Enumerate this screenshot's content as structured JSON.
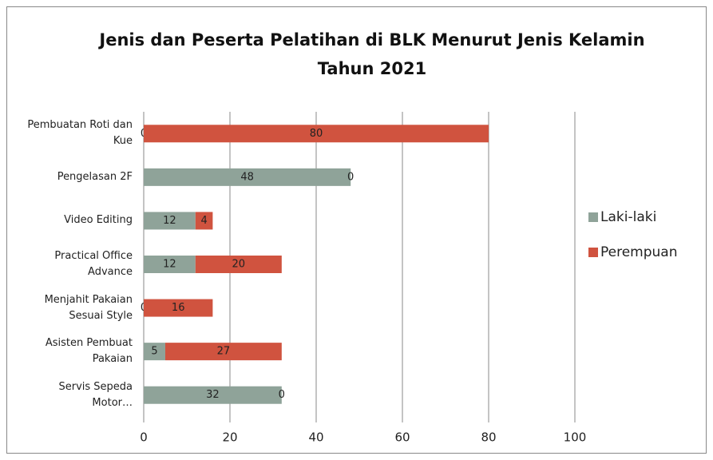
{
  "chart_data": {
    "type": "stacked_bar_horizontal",
    "title": "Jenis dan Peserta Pelatihan di BLK Menurut Jenis Kelamin Tahun 2021",
    "categories": [
      "Pembuatan Roti dan Kue",
      "Pengelasan 2F",
      "Video Editing",
      "Practical Office Advance",
      "Menjahit Pakaian Sesuai Style",
      "Asisten Pembuat Pakaian",
      "Servis Sepeda Motor…"
    ],
    "series": [
      {
        "name": "Laki-laki",
        "color": "#8fa399",
        "values": [
          0,
          48,
          12,
          12,
          0,
          5,
          32
        ]
      },
      {
        "name": "Perempuan",
        "color": "#d0533f",
        "values": [
          80,
          0,
          4,
          20,
          16,
          27,
          0
        ]
      }
    ],
    "xlim": [
      0,
      100
    ],
    "xticks": [
      0,
      20,
      40,
      60,
      80,
      100
    ],
    "grid": true,
    "legend": "right"
  }
}
